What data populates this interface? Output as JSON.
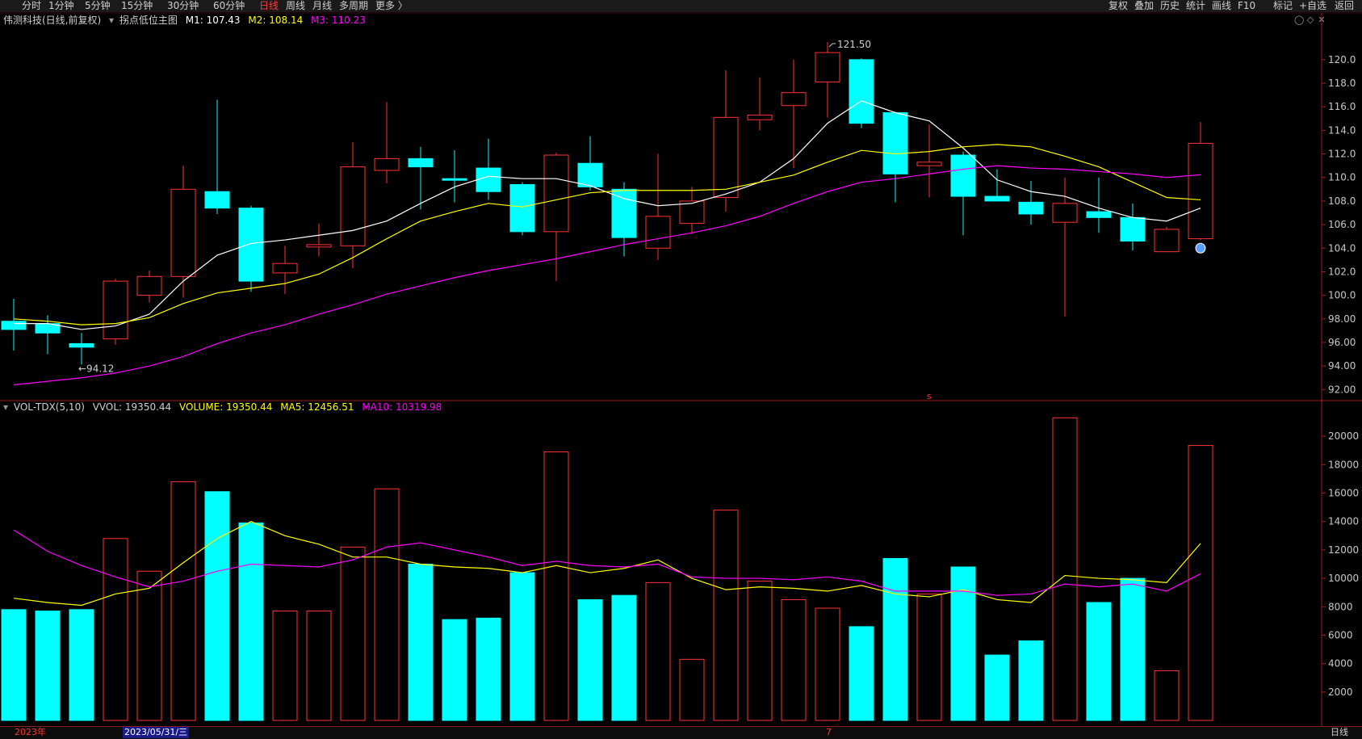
{
  "toolbar": {
    "left_items": [
      "分时",
      "1分钟",
      "5分钟",
      "15分钟",
      "30分钟",
      "60分钟",
      "日线",
      "周线",
      "月线",
      "多周期",
      "更多 〉"
    ],
    "active": "日线",
    "right_items": [
      "复权",
      "叠加",
      "历史",
      "统计",
      "画线",
      "F10",
      "标记",
      "+自选",
      "返回"
    ]
  },
  "price_legend": {
    "title": "伟测科技(日线,前复权)",
    "indicator": "拐点低位主图",
    "m1_label": "M1: 107.43",
    "m2_label": "M2: 108.14",
    "m3_label": "M3: 110.23"
  },
  "volume_legend": {
    "title": "VOL-TDX(5,10)",
    "vvol_label": "VVOL: 19350.44",
    "volume_label": "VOLUME: 19350.44",
    "ma5_label": "MA5: 12456.51",
    "ma10_label": "MA10: 10319.98"
  },
  "bottom_bar": {
    "year_label": "2023年",
    "cursor_date": "2023/05/31/三",
    "month_marker": "7",
    "period_label": "日线"
  },
  "colors": {
    "up": "#ff3232",
    "down": "#00ffff",
    "m1": "#ffffff",
    "m2": "#ffff00",
    "m3": "#ff00ff",
    "axis": "#a01e1e",
    "tick_text": "#c8c8c8"
  },
  "chart_data": [
    {
      "type": "candlestick",
      "title": "伟测科技(日线,前复权)",
      "y_ticks": [
        92,
        94,
        96,
        98,
        100,
        102,
        104,
        106,
        108,
        110,
        112,
        114,
        116,
        118,
        120
      ],
      "y_tick_labels": [
        "92.00",
        "94.00",
        "96.00",
        "98.00",
        "100.0",
        "102.0",
        "104.0",
        "106.0",
        "108.0",
        "110.0",
        "112.0",
        "114.0",
        "116.0",
        "118.0",
        "120.0"
      ],
      "ylim": [
        91.2,
        122.8
      ],
      "annotations": [
        {
          "text": "121.50",
          "bar_index": 24,
          "value": 121.5
        },
        {
          "text": "94.12",
          "bar_index": 2,
          "value": 94.12
        }
      ],
      "candles": [
        {
          "open": 97.8,
          "close": 97.1,
          "high": 99.7,
          "low": 95.3
        },
        {
          "open": 97.6,
          "close": 96.8,
          "high": 98.3,
          "low": 95.0
        },
        {
          "open": 95.9,
          "close": 95.6,
          "high": 96.8,
          "low": 94.12
        },
        {
          "open": 96.3,
          "close": 101.2,
          "high": 101.4,
          "low": 95.8
        },
        {
          "open": 100.0,
          "close": 101.6,
          "high": 102.1,
          "low": 99.4
        },
        {
          "open": 101.6,
          "close": 109.0,
          "high": 111.0,
          "low": 99.8
        },
        {
          "open": 108.8,
          "close": 107.4,
          "high": 116.6,
          "low": 106.9
        },
        {
          "open": 107.4,
          "close": 101.2,
          "high": 107.6,
          "low": 100.3
        },
        {
          "open": 101.9,
          "close": 102.7,
          "high": 104.2,
          "low": 100.1
        },
        {
          "open": 104.1,
          "close": 104.3,
          "high": 106.1,
          "low": 103.3
        },
        {
          "open": 104.2,
          "close": 110.9,
          "high": 113.0,
          "low": 102.3
        },
        {
          "open": 110.6,
          "close": 111.6,
          "high": 116.4,
          "low": 109.5
        },
        {
          "open": 111.6,
          "close": 110.9,
          "high": 112.6,
          "low": 107.3
        },
        {
          "open": 109.9,
          "close": 109.8,
          "high": 112.3,
          "low": 107.9
        },
        {
          "open": 110.8,
          "close": 108.8,
          "high": 113.3,
          "low": 108.1
        },
        {
          "open": 109.4,
          "close": 105.4,
          "high": 109.6,
          "low": 105.1
        },
        {
          "open": 105.4,
          "close": 111.9,
          "high": 112.1,
          "low": 101.2
        },
        {
          "open": 111.2,
          "close": 109.2,
          "high": 113.5,
          "low": 108.9
        },
        {
          "open": 109.0,
          "close": 104.9,
          "high": 109.6,
          "low": 103.3
        },
        {
          "open": 104.0,
          "close": 106.7,
          "high": 112.0,
          "low": 103.0
        },
        {
          "open": 106.1,
          "close": 108.0,
          "high": 109.2,
          "low": 105.2
        },
        {
          "open": 108.3,
          "close": 115.1,
          "high": 119.1,
          "low": 107.1
        },
        {
          "open": 114.9,
          "close": 115.3,
          "high": 118.5,
          "low": 114.0
        },
        {
          "open": 116.1,
          "close": 117.2,
          "high": 120.0,
          "low": 110.8
        },
        {
          "open": 118.1,
          "close": 120.6,
          "high": 121.5,
          "low": 115.1
        },
        {
          "open": 120.0,
          "close": 114.6,
          "high": 120.1,
          "low": 114.2
        },
        {
          "open": 115.5,
          "close": 110.3,
          "high": 115.6,
          "low": 107.9
        },
        {
          "open": 111.0,
          "close": 111.3,
          "high": 114.5,
          "low": 108.3
        },
        {
          "open": 111.9,
          "close": 108.4,
          "high": 112.2,
          "low": 105.1
        },
        {
          "open": 108.4,
          "close": 108.0,
          "high": 110.7,
          "low": 108.0
        },
        {
          "open": 107.9,
          "close": 106.9,
          "high": 109.7,
          "low": 106.0
        },
        {
          "open": 106.2,
          "close": 107.8,
          "high": 110.0,
          "low": 98.2
        },
        {
          "open": 107.1,
          "close": 106.6,
          "high": 110.0,
          "low": 105.3
        },
        {
          "open": 106.6,
          "close": 104.6,
          "high": 107.8,
          "low": 103.8
        },
        {
          "open": 103.7,
          "close": 105.6,
          "high": 105.8,
          "low": 103.7
        },
        {
          "open": 104.8,
          "close": 112.9,
          "high": 114.7,
          "low": 104.7
        }
      ],
      "series": [
        {
          "name": "M1",
          "values": [
            97.6,
            97.6,
            97.1,
            97.4,
            98.4,
            101.2,
            103.4,
            104.4,
            104.7,
            105.1,
            105.5,
            106.3,
            107.8,
            109.2,
            110.1,
            109.9,
            109.9,
            109.3,
            108.2,
            107.6,
            107.8,
            108.6,
            109.6,
            111.6,
            114.6,
            116.5,
            115.5,
            114.8,
            112.5,
            109.8,
            108.8,
            108.4,
            107.4,
            106.6,
            106.3,
            107.4
          ]
        },
        {
          "name": "M2",
          "values": [
            98.0,
            97.8,
            97.5,
            97.6,
            98.1,
            99.3,
            100.2,
            100.6,
            101.0,
            101.8,
            103.2,
            104.8,
            106.3,
            107.1,
            107.8,
            107.5,
            108.1,
            108.7,
            108.9,
            108.9,
            108.9,
            109.0,
            109.6,
            110.2,
            111.3,
            112.3,
            112.0,
            112.2,
            112.6,
            112.8,
            112.6,
            111.8,
            110.9,
            109.6,
            108.3,
            108.1
          ]
        },
        {
          "name": "M3",
          "values": [
            92.4,
            92.7,
            93.0,
            93.4,
            94.0,
            94.8,
            95.9,
            96.8,
            97.5,
            98.4,
            99.2,
            100.1,
            100.8,
            101.5,
            102.1,
            102.6,
            103.1,
            103.7,
            104.3,
            104.8,
            105.3,
            105.9,
            106.7,
            107.8,
            108.8,
            109.6,
            109.9,
            110.3,
            110.7,
            111.0,
            110.8,
            110.7,
            110.5,
            110.3,
            110.0,
            110.23
          ]
        }
      ]
    },
    {
      "type": "bar",
      "title": "VOL-TDX(5,10)",
      "y_ticks": [
        2000,
        4000,
        6000,
        8000,
        10000,
        12000,
        14000,
        16000,
        18000,
        20000
      ],
      "ylim": [
        0,
        21600
      ],
      "volumes": [
        7800,
        7700,
        7800,
        12800,
        10500,
        16800,
        16100,
        13900,
        7700,
        7700,
        12200,
        16300,
        11000,
        7100,
        7200,
        10400,
        18900,
        8500,
        8800,
        9700,
        4300,
        14800,
        9800,
        8500,
        7900,
        6600,
        11400,
        8900,
        10800,
        4600,
        5600,
        21300,
        8300,
        10000,
        3500,
        19350.44
      ],
      "series": [
        {
          "name": "MA5",
          "values": [
            8600,
            8300,
            8100,
            8900,
            9300,
            11100,
            12800,
            14000,
            13000,
            12400,
            11500,
            11500,
            11000,
            10800,
            10700,
            10400,
            10900,
            10400,
            10700,
            11300,
            10000,
            9200,
            9400,
            9300,
            9100,
            9500,
            8900,
            8700,
            9200,
            8500,
            8300,
            10200,
            10000,
            9900,
            9700,
            12456.51
          ]
        },
        {
          "name": "MA10",
          "values": [
            13400,
            11900,
            10900,
            10100,
            9400,
            9800,
            10500,
            11000,
            10900,
            10800,
            11300,
            12200,
            12500,
            12000,
            11500,
            10900,
            11200,
            10900,
            10800,
            11000,
            10100,
            10000,
            10000,
            9900,
            10100,
            9800,
            9100,
            9100,
            9100,
            8800,
            8900,
            9600,
            9400,
            9600,
            9100,
            10319.98
          ]
        }
      ]
    }
  ]
}
